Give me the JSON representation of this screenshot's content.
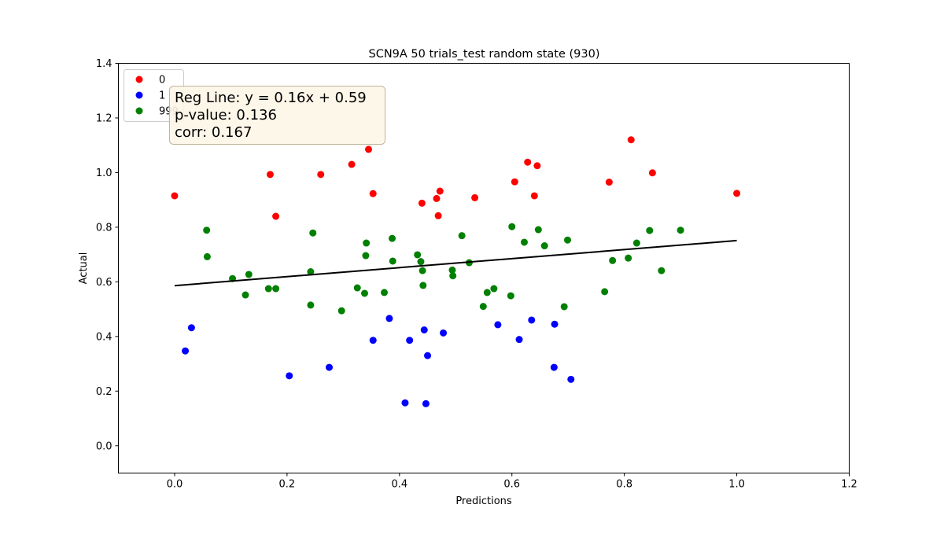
{
  "chart_data": {
    "type": "scatter",
    "title": "SCN9A 50 trials_test random state (930)",
    "xlabel": "Predictions",
    "ylabel": "Actual",
    "xlim": [
      -0.1,
      1.2
    ],
    "ylim": [
      -0.1,
      1.4
    ],
    "x_ticks": [
      "0.0",
      "0.2",
      "0.4",
      "0.6",
      "0.8",
      "1.0",
      "1.2"
    ],
    "y_ticks": [
      "0.0",
      "0.2",
      "0.4",
      "0.6",
      "0.8",
      "1.0",
      "1.2",
      "1.4"
    ],
    "legend_position": "top-left",
    "grid": false,
    "series": [
      {
        "name": "0",
        "color": "#ff0000",
        "points": [
          [
            0.0,
            0.915
          ],
          [
            0.17,
            0.993
          ],
          [
            0.18,
            0.84
          ],
          [
            0.26,
            0.993
          ],
          [
            0.315,
            1.03
          ],
          [
            0.345,
            1.085
          ],
          [
            0.353,
            0.923
          ],
          [
            0.44,
            0.888
          ],
          [
            0.466,
            0.905
          ],
          [
            0.469,
            0.842
          ],
          [
            0.472,
            0.932
          ],
          [
            0.534,
            0.908
          ],
          [
            0.605,
            0.966
          ],
          [
            0.628,
            1.038
          ],
          [
            0.64,
            0.915
          ],
          [
            0.645,
            1.025
          ],
          [
            0.773,
            0.965
          ],
          [
            0.812,
            1.12
          ],
          [
            0.85,
            0.999
          ],
          [
            1.0,
            0.924
          ]
        ]
      },
      {
        "name": "1",
        "color": "#0000ff",
        "points": [
          [
            0.019,
            0.347
          ],
          [
            0.03,
            0.432
          ],
          [
            0.204,
            0.256
          ],
          [
            0.275,
            0.287
          ],
          [
            0.353,
            0.386
          ],
          [
            0.382,
            0.466
          ],
          [
            0.41,
            0.157
          ],
          [
            0.418,
            0.386
          ],
          [
            0.444,
            0.424
          ],
          [
            0.447,
            0.154
          ],
          [
            0.45,
            0.33
          ],
          [
            0.478,
            0.413
          ],
          [
            0.575,
            0.443
          ],
          [
            0.613,
            0.389
          ],
          [
            0.635,
            0.46
          ],
          [
            0.675,
            0.287
          ],
          [
            0.676,
            0.445
          ],
          [
            0.705,
            0.243
          ]
        ]
      },
      {
        "name": "999",
        "color": "#008000",
        "points": [
          [
            0.057,
            0.789
          ],
          [
            0.058,
            0.692
          ],
          [
            0.103,
            0.612
          ],
          [
            0.126,
            0.552
          ],
          [
            0.132,
            0.627
          ],
          [
            0.167,
            0.575
          ],
          [
            0.18,
            0.575
          ],
          [
            0.242,
            0.637
          ],
          [
            0.242,
            0.515
          ],
          [
            0.246,
            0.779
          ],
          [
            0.297,
            0.494
          ],
          [
            0.325,
            0.578
          ],
          [
            0.338,
            0.558
          ],
          [
            0.34,
            0.696
          ],
          [
            0.341,
            0.742
          ],
          [
            0.373,
            0.561
          ],
          [
            0.387,
            0.759
          ],
          [
            0.388,
            0.676
          ],
          [
            0.432,
            0.699
          ],
          [
            0.438,
            0.674
          ],
          [
            0.441,
            0.641
          ],
          [
            0.442,
            0.587
          ],
          [
            0.494,
            0.643
          ],
          [
            0.495,
            0.622
          ],
          [
            0.511,
            0.769
          ],
          [
            0.524,
            0.67
          ],
          [
            0.549,
            0.51
          ],
          [
            0.556,
            0.561
          ],
          [
            0.568,
            0.575
          ],
          [
            0.598,
            0.549
          ],
          [
            0.6,
            0.802
          ],
          [
            0.622,
            0.745
          ],
          [
            0.647,
            0.791
          ],
          [
            0.658,
            0.732
          ],
          [
            0.693,
            0.509
          ],
          [
            0.699,
            0.753
          ],
          [
            0.765,
            0.564
          ],
          [
            0.779,
            0.678
          ],
          [
            0.807,
            0.687
          ],
          [
            0.822,
            0.742
          ],
          [
            0.845,
            0.788
          ],
          [
            0.866,
            0.641
          ],
          [
            0.9,
            0.789
          ]
        ]
      }
    ],
    "regression_line": {
      "color": "#000000",
      "x": [
        0.0,
        1.0
      ],
      "y": [
        0.586,
        0.751
      ]
    },
    "annotation": {
      "lines": [
        "Reg Line: y = 0.16x + 0.59",
        "p-value: 0.136",
        "corr: 0.167"
      ],
      "background": "#fdf6e8",
      "border": "#c2b59b"
    }
  }
}
